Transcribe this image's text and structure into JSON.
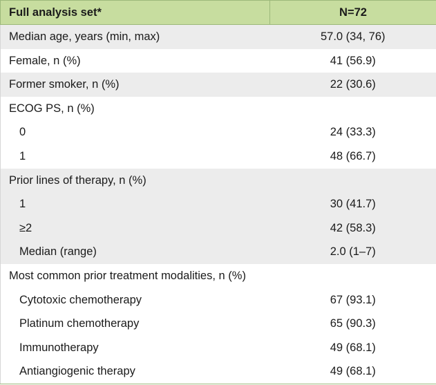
{
  "header": {
    "col1": "Full analysis set*",
    "col2": "N=72"
  },
  "rows": [
    {
      "label": "Median age, years (min, max)",
      "value": "57.0 (34, 76)"
    },
    {
      "label": "Female, n (%)",
      "value": "41 (56.9)"
    },
    {
      "label": "Former smoker, n (%)",
      "value": "22 (30.6)"
    },
    {
      "label": "ECOG PS, n (%)",
      "value": ""
    },
    {
      "label": "0",
      "value": "24 (33.3)"
    },
    {
      "label": "1",
      "value": "48 (66.7)"
    },
    {
      "label": "Prior lines of therapy, n (%)",
      "value": ""
    },
    {
      "label": "1",
      "value": "30 (41.7)"
    },
    {
      "label": "≥2",
      "value": "42 (58.3)"
    },
    {
      "label": "Median (range)",
      "value": "2.0 (1–7)"
    },
    {
      "label": "Most common prior treatment modalities, n (%)",
      "value": ""
    },
    {
      "label": "Cytotoxic chemotherapy",
      "value": "67 (93.1)"
    },
    {
      "label": "Platinum chemotherapy",
      "value": "65 (90.3)"
    },
    {
      "label": "Immunotherapy",
      "value": "49 (68.1)"
    },
    {
      "label": "Antiangiogenic therapy",
      "value": "49 (68.1)"
    }
  ]
}
